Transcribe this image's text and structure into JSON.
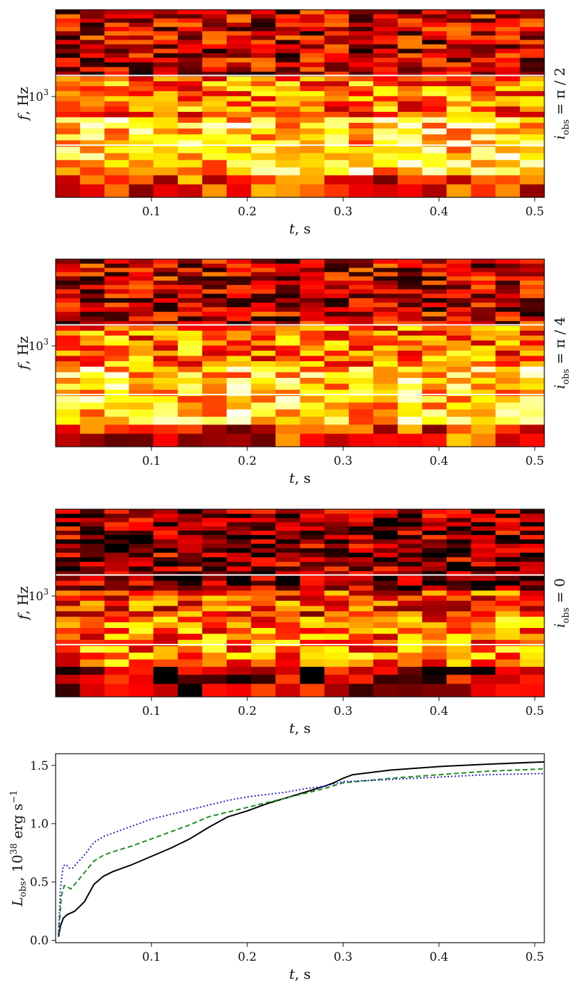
{
  "chart_data": [
    {
      "type": "heatmap",
      "xlabel": "t, s",
      "ylabel": "f, Hz",
      "side_label": "i_obs = π / 2",
      "xlim": [
        0,
        0.51
      ],
      "xticks": [
        "0.1",
        "0.2",
        "0.3",
        "0.4",
        "0.5"
      ],
      "ytick_label": "10^3",
      "ytick_value": 1000,
      "hlines": [
        1400,
        460
      ],
      "colormap": "hot",
      "seed": 11
    },
    {
      "type": "heatmap",
      "xlabel": "t, s",
      "ylabel": "f, Hz",
      "side_label": "i_obs = π / 4",
      "xlim": [
        0,
        0.51
      ],
      "xticks": [
        "0.1",
        "0.2",
        "0.3",
        "0.4",
        "0.5"
      ],
      "ytick_label": "10^3",
      "ytick_value": 1000,
      "hlines": [
        1400,
        460
      ],
      "colormap": "hot",
      "seed": 23
    },
    {
      "type": "heatmap",
      "xlabel": "t, s",
      "ylabel": "f, Hz",
      "side_label": "i_obs = 0",
      "xlim": [
        0,
        0.51
      ],
      "xticks": [
        "0.1",
        "0.2",
        "0.3",
        "0.4",
        "0.5"
      ],
      "ytick_label": "10^3",
      "ytick_value": 1000,
      "hlines": [
        1400,
        460
      ],
      "colormap": "hot",
      "seed": 37
    },
    {
      "type": "line",
      "xlabel": "t, s",
      "ylabel": "L_obs, 10^38 erg s^-1",
      "xlim": [
        0,
        0.51
      ],
      "ylim": [
        -0.02,
        1.6
      ],
      "xticks": [
        "0.1",
        "0.2",
        "0.3",
        "0.4",
        "0.5"
      ],
      "yticks": [
        "0.0",
        "0.5",
        "1.0",
        "1.5"
      ],
      "series": [
        {
          "style": "solid",
          "color": "#000000",
          "x": [
            0.003,
            0.005,
            0.008,
            0.012,
            0.02,
            0.03,
            0.04,
            0.05,
            0.06,
            0.08,
            0.1,
            0.12,
            0.14,
            0.16,
            0.18,
            0.2,
            0.22,
            0.24,
            0.26,
            0.28,
            0.29,
            0.3,
            0.31,
            0.35,
            0.4,
            0.45,
            0.51
          ],
          "y": [
            0.03,
            0.12,
            0.19,
            0.22,
            0.25,
            0.33,
            0.48,
            0.55,
            0.59,
            0.65,
            0.72,
            0.79,
            0.87,
            0.97,
            1.06,
            1.11,
            1.17,
            1.22,
            1.27,
            1.32,
            1.35,
            1.39,
            1.42,
            1.46,
            1.49,
            1.51,
            1.53
          ]
        },
        {
          "style": "dashed",
          "color": "#1e8c1e",
          "x": [
            0.003,
            0.006,
            0.009,
            0.012,
            0.016,
            0.02,
            0.03,
            0.04,
            0.05,
            0.06,
            0.08,
            0.1,
            0.12,
            0.14,
            0.16,
            0.18,
            0.2,
            0.22,
            0.24,
            0.26,
            0.28,
            0.3,
            0.35,
            0.4,
            0.45,
            0.51
          ],
          "y": [
            0.05,
            0.38,
            0.47,
            0.46,
            0.44,
            0.48,
            0.58,
            0.68,
            0.73,
            0.76,
            0.81,
            0.87,
            0.93,
            0.99,
            1.06,
            1.1,
            1.14,
            1.18,
            1.22,
            1.26,
            1.3,
            1.35,
            1.39,
            1.42,
            1.45,
            1.47
          ]
        },
        {
          "style": "dotted",
          "color": "#1f1fdd",
          "x": [
            0.003,
            0.005,
            0.008,
            0.011,
            0.014,
            0.018,
            0.022,
            0.03,
            0.04,
            0.05,
            0.06,
            0.08,
            0.1,
            0.12,
            0.14,
            0.16,
            0.18,
            0.2,
            0.22,
            0.24,
            0.26,
            0.28,
            0.3,
            0.35,
            0.4,
            0.45,
            0.51
          ],
          "y": [
            0.05,
            0.45,
            0.64,
            0.65,
            0.62,
            0.62,
            0.66,
            0.73,
            0.84,
            0.89,
            0.92,
            0.98,
            1.04,
            1.08,
            1.12,
            1.16,
            1.2,
            1.23,
            1.25,
            1.27,
            1.3,
            1.32,
            1.36,
            1.38,
            1.4,
            1.42,
            1.43
          ]
        }
      ]
    }
  ]
}
